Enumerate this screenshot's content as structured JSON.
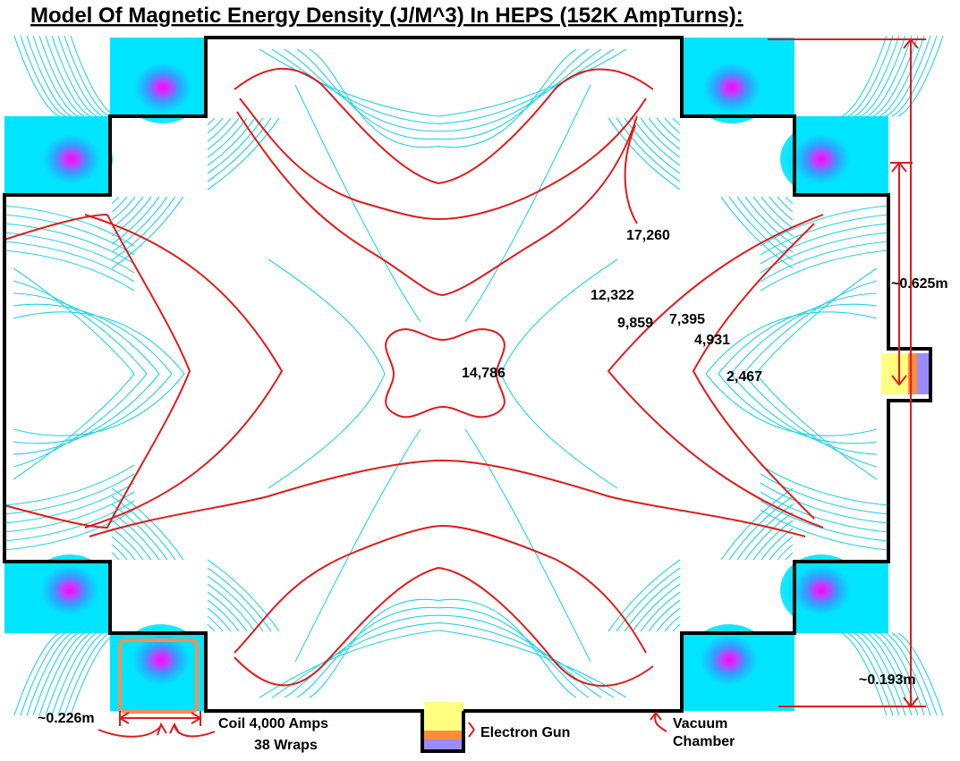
{
  "title": "Model Of Magnetic Energy Density (J/M^3) In HEPS (152K AmpTurns):",
  "contour_labels": [
    {
      "key": "v17260",
      "text": "17,260"
    },
    {
      "key": "v12322",
      "text": "12,322"
    },
    {
      "key": "v9859",
      "text": "9,859"
    },
    {
      "key": "v7395",
      "text": "7,395"
    },
    {
      "key": "v4931",
      "text": "4,931"
    },
    {
      "key": "v2467",
      "text": "2,467"
    },
    {
      "key": "v14786",
      "text": "14,786"
    }
  ],
  "dimensions": {
    "height_625": "~0.625m",
    "height_193": "~0.193m",
    "width_226": "~0.226m"
  },
  "annotations": {
    "coil_line1": "Coil 4,000 Amps",
    "coil_line2": "38 Wraps",
    "electron_gun": "Electron Gun",
    "vacuum_line1": "Vacuum",
    "vacuum_line2": "Chamber"
  },
  "colors": {
    "field_lines": "#22d3e6",
    "contour_lines": "#e11b1b",
    "coil_glow": "#00e5ff",
    "coil_core": "#ff00ff",
    "chamber_wall": "#000000",
    "gun_yellow": "#ffff80",
    "gun_orange": "#ff8c3a",
    "gun_violet": "#9a8cff",
    "coil_highlight": "#f0905a"
  }
}
